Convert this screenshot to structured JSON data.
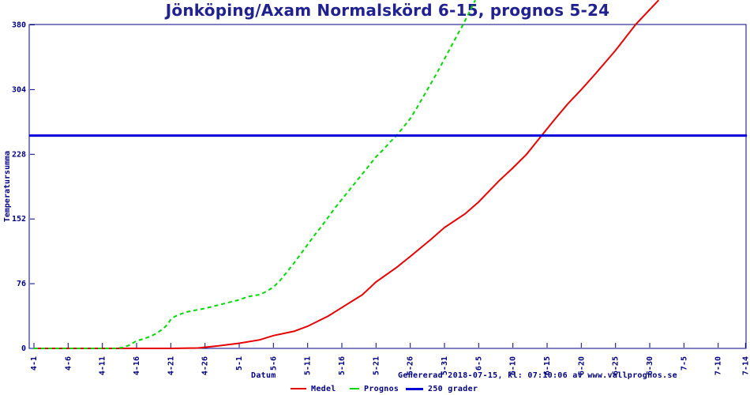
{
  "title": "Jönköping/Axam Normalskörd 6-15, prognos 5-24",
  "footer": {
    "xlabel": "Datum",
    "generated": "Genererad 2018-07-15, kl: 07:10:06 av www.vallprognos.se"
  },
  "colors": {
    "background": "#ffffff",
    "title": "#212190",
    "axis": "#000080",
    "medel": "#e60000",
    "prognos": "#00d800",
    "threshold": "#0000d8"
  },
  "chart_data": {
    "type": "line",
    "title": "Jönköping/Axam Normalskörd 6-15, prognos 5-24",
    "xlabel": "Datum",
    "ylabel": "Temperatursumma",
    "x_unit": "days since 4-1",
    "xlim_days": [
      0,
      104
    ],
    "ylim": [
      0,
      380
    ],
    "y_ticks": [
      0,
      76,
      152,
      228,
      304,
      380
    ],
    "x_tick_labels": [
      "4-1",
      "4-6",
      "4-11",
      "4-16",
      "4-21",
      "4-26",
      "5-1",
      "5-6",
      "5-11",
      "5-16",
      "5-21",
      "5-26",
      "5-31",
      "6-5",
      "6-10",
      "6-15",
      "6-20",
      "6-25",
      "6-30",
      "7-5",
      "7-10",
      "7-14"
    ],
    "x_tick_days": [
      0,
      5,
      10,
      15,
      20,
      25,
      30,
      35,
      40,
      45,
      50,
      55,
      60,
      65,
      70,
      75,
      80,
      85,
      90,
      95,
      100,
      104
    ],
    "grid": false,
    "legend_position": "bottom",
    "annotations": {
      "normal_harvest_date": "6-15",
      "forecast_harvest_date": "5-24",
      "threshold_value": 250
    },
    "series": [
      {
        "name": "Medel",
        "color": "#e60000",
        "style": "solid",
        "points": [
          [
            0,
            0
          ],
          [
            5,
            0
          ],
          [
            10,
            0
          ],
          [
            15,
            0
          ],
          [
            20,
            0
          ],
          [
            24,
            0.5
          ],
          [
            27,
            3
          ],
          [
            30,
            6
          ],
          [
            33,
            10
          ],
          [
            35,
            15
          ],
          [
            38,
            20
          ],
          [
            40,
            26
          ],
          [
            43,
            38
          ],
          [
            45,
            48
          ],
          [
            48,
            63
          ],
          [
            50,
            78
          ],
          [
            53,
            95
          ],
          [
            55,
            108
          ],
          [
            58,
            128
          ],
          [
            60,
            142
          ],
          [
            63,
            158
          ],
          [
            65,
            172
          ],
          [
            68,
            197
          ],
          [
            70,
            212
          ],
          [
            72,
            228
          ],
          [
            74,
            248
          ],
          [
            76,
            268
          ],
          [
            78,
            287
          ],
          [
            80,
            304
          ],
          [
            82,
            322
          ],
          [
            85,
            350
          ],
          [
            88,
            381
          ],
          [
            91.3,
            409
          ]
        ]
      },
      {
        "name": "Prognos",
        "color": "#00d800",
        "style": "dashed",
        "points": [
          [
            0,
            0
          ],
          [
            4,
            0
          ],
          [
            8,
            0
          ],
          [
            12,
            0
          ],
          [
            13,
            1
          ],
          [
            14,
            4
          ],
          [
            15,
            9
          ],
          [
            16,
            11
          ],
          [
            17,
            14
          ],
          [
            18,
            18
          ],
          [
            19,
            24
          ],
          [
            19.5,
            28
          ],
          [
            20,
            34
          ],
          [
            20.5,
            37
          ],
          [
            21,
            39
          ],
          [
            22,
            42
          ],
          [
            23,
            44
          ],
          [
            24,
            45.5
          ],
          [
            25,
            47
          ],
          [
            26,
            49
          ],
          [
            27,
            51
          ],
          [
            28,
            53
          ],
          [
            29,
            55
          ],
          [
            30,
            57
          ],
          [
            31,
            60
          ],
          [
            32,
            62
          ],
          [
            33,
            63
          ],
          [
            34,
            67
          ],
          [
            35,
            72
          ],
          [
            36,
            80
          ],
          [
            37,
            90
          ],
          [
            38,
            100
          ],
          [
            39,
            111
          ],
          [
            40,
            122
          ],
          [
            41,
            133
          ],
          [
            42,
            143
          ],
          [
            43,
            154
          ],
          [
            44,
            165
          ],
          [
            45,
            175
          ],
          [
            46,
            185
          ],
          [
            47,
            195
          ],
          [
            48,
            205
          ],
          [
            49,
            215
          ],
          [
            50,
            225
          ],
          [
            51,
            233
          ],
          [
            52,
            242
          ],
          [
            53,
            250
          ],
          [
            54,
            260
          ],
          [
            55,
            270
          ],
          [
            56,
            283
          ],
          [
            57,
            297
          ],
          [
            58,
            311
          ],
          [
            59,
            325
          ],
          [
            60,
            340
          ],
          [
            61,
            355
          ],
          [
            62,
            370
          ],
          [
            62.7,
            380
          ],
          [
            64.5,
            409
          ]
        ]
      },
      {
        "name": "250 grader",
        "color": "#0000d8",
        "style": "solid",
        "points": [
          [
            -0.7,
            250
          ],
          [
            104.2,
            250
          ]
        ]
      }
    ]
  }
}
